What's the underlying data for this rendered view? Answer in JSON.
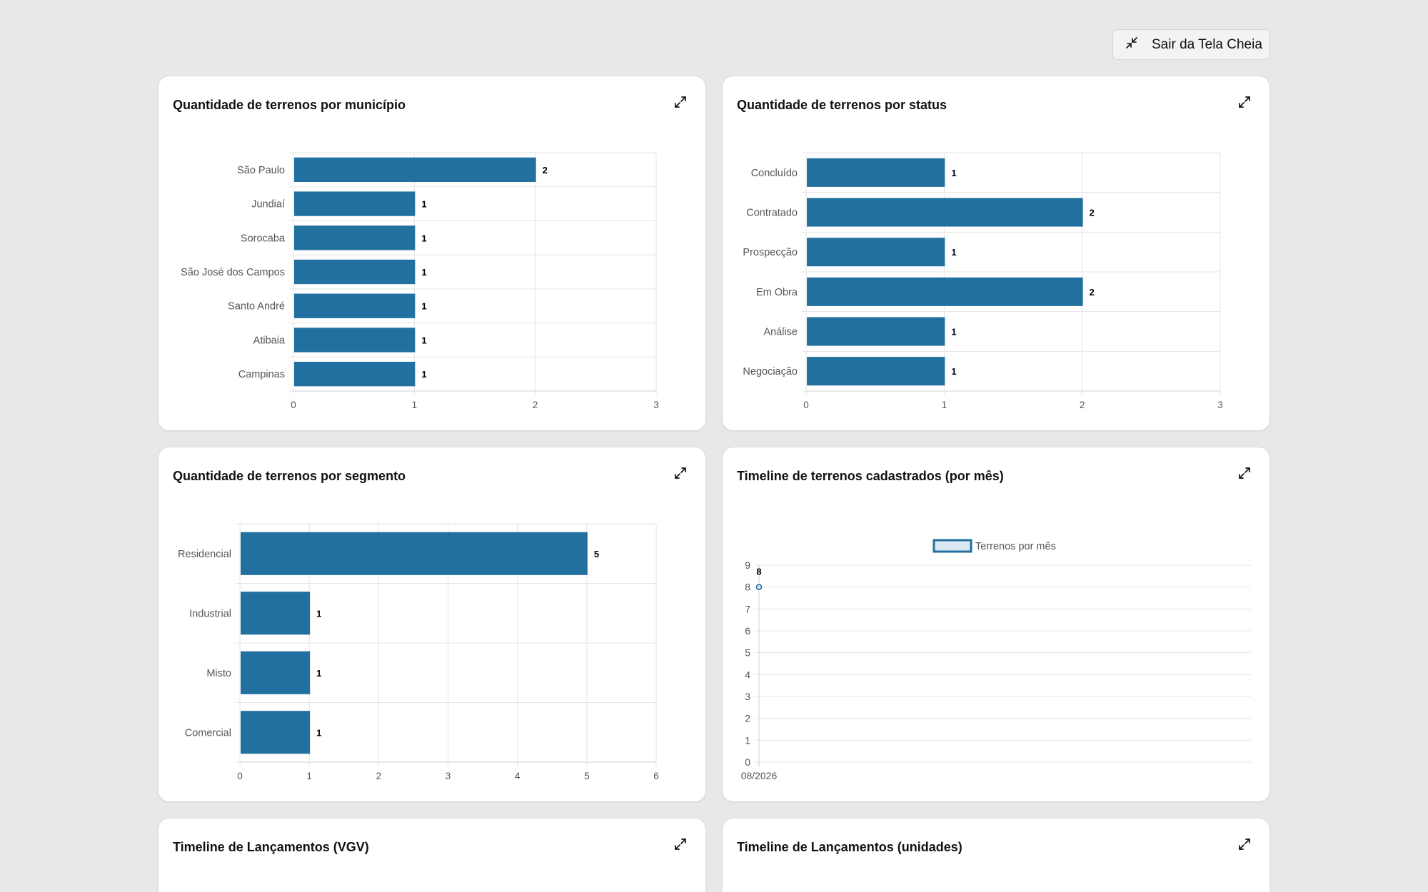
{
  "toolbar": {
    "exit_fullscreen_label": "Sair da Tela Cheia",
    "exit_icon": "collapse-arrows-icon",
    "expand_icon": "expand-arrows-icon"
  },
  "colors": {
    "bar": "#22709f",
    "grid": "#e5e5e5",
    "axis_text": "#555555",
    "background": "#e8e8e8",
    "card": "#ffffff"
  },
  "cards": [
    {
      "title": "Quantidade de terrenos por município"
    },
    {
      "title": "Quantidade de terrenos por status"
    },
    {
      "title": "Quantidade de terrenos por segmento"
    },
    {
      "title": "Timeline de terrenos cadastrados (por mês)"
    },
    {
      "title": "Timeline de Lançamentos (VGV)"
    },
    {
      "title": "Timeline de Lançamentos (unidades)"
    }
  ],
  "chart_data": [
    {
      "type": "bar",
      "orientation": "horizontal",
      "title": "Quantidade de terrenos por município",
      "categories": [
        "São Paulo",
        "Jundiaí",
        "Sorocaba",
        "São José dos Campos",
        "Santo André",
        "Atibaia",
        "Campinas"
      ],
      "values": [
        2,
        1,
        1,
        1,
        1,
        1,
        1
      ],
      "xlim": [
        0,
        3
      ],
      "ticks": [
        "0",
        "1",
        "2",
        "3"
      ],
      "grid": true,
      "data_labels": true
    },
    {
      "type": "bar",
      "orientation": "horizontal",
      "title": "Quantidade de terrenos por status",
      "categories": [
        "Concluído",
        "Contratado",
        "Prospecção",
        "Em Obra",
        "Análise",
        "Negociação"
      ],
      "values": [
        1,
        2,
        1,
        2,
        1,
        1
      ],
      "xlim": [
        0,
        3
      ],
      "ticks": [
        "0",
        "1",
        "2",
        "3"
      ],
      "grid": true,
      "data_labels": true
    },
    {
      "type": "bar",
      "orientation": "horizontal",
      "title": "Quantidade de terrenos por segmento",
      "categories": [
        "Residencial",
        "Industrial",
        "Misto",
        "Comercial"
      ],
      "values": [
        5,
        1,
        1,
        1
      ],
      "xlim": [
        0,
        6
      ],
      "ticks": [
        "0",
        "1",
        "2",
        "3",
        "4",
        "5",
        "6"
      ],
      "grid": true,
      "data_labels": true
    },
    {
      "type": "line",
      "title": "Timeline de terrenos cadastrados (por mês)",
      "legend": "top",
      "x": [
        "08/2026"
      ],
      "series": [
        {
          "name": "Terrenos por mês",
          "values": [
            8
          ]
        }
      ],
      "ylim": [
        0,
        9
      ],
      "ticks": [
        "0",
        "1",
        "2",
        "3",
        "4",
        "5",
        "6",
        "7",
        "8",
        "9"
      ],
      "grid": true,
      "data_labels": true
    }
  ]
}
